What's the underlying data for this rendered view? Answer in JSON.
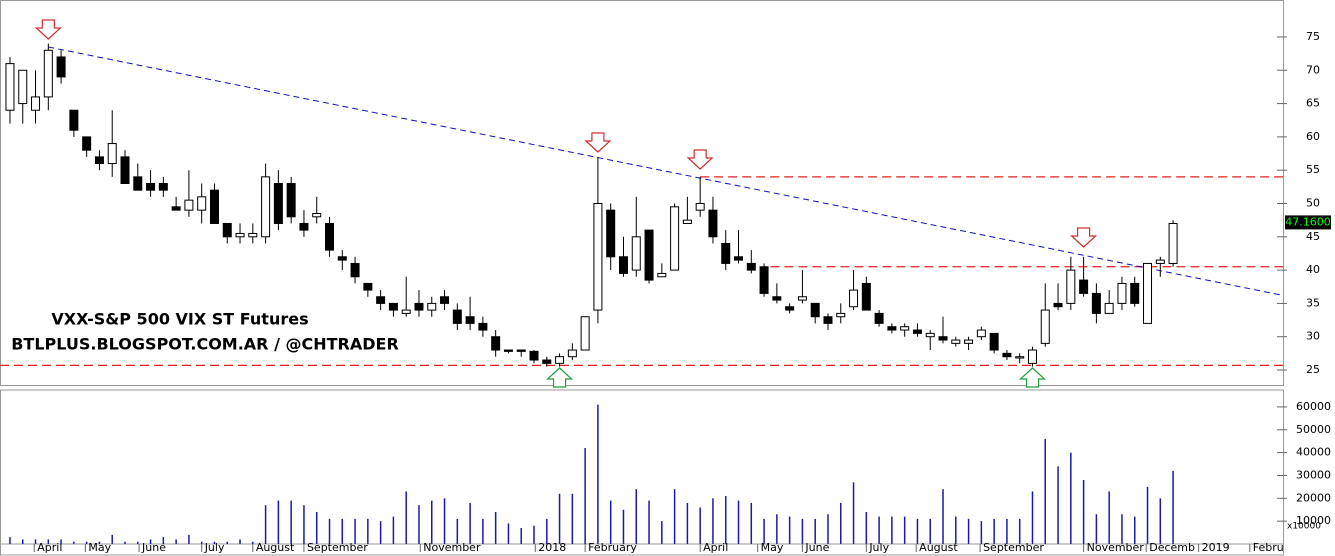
{
  "chart_data": {
    "type": "candlestick",
    "annotations": [
      "VXX-S&P 500 VIX ST Futures",
      "BTLPLUS.BLOGSPOT.COM.AR / @CHTRADER"
    ],
    "open": [
      64,
      65,
      64,
      66,
      72,
      64,
      60,
      57,
      56,
      57,
      54,
      53,
      53,
      49.5,
      49,
      49,
      52,
      47,
      45,
      45,
      45,
      53,
      53,
      47,
      48,
      47,
      42,
      41,
      38,
      36,
      35,
      33.5,
      35,
      34,
      36,
      34,
      33,
      32,
      30,
      28,
      28,
      27.8,
      26.5,
      26,
      27,
      28,
      34,
      49,
      42,
      40,
      46,
      39,
      40,
      47,
      49,
      49,
      44,
      42,
      41,
      40.5,
      36,
      34.5,
      35.5,
      35,
      33,
      33,
      34.5,
      38,
      33.5,
      31.5,
      31,
      31,
      30,
      30,
      29,
      29,
      30,
      30.5,
      27.5,
      26.8,
      26,
      29,
      35,
      35,
      38.5,
      36.5,
      33.5,
      35,
      38,
      32,
      41,
      41
    ],
    "high": [
      72,
      70,
      70,
      74,
      73,
      64,
      60,
      58,
      64,
      58,
      56,
      55,
      54,
      51,
      55,
      53,
      53,
      47,
      47,
      47,
      56,
      55,
      54,
      49,
      51,
      48,
      43,
      42,
      38,
      37,
      35,
      39,
      37,
      36,
      37,
      35,
      36,
      33,
      31,
      28,
      28,
      28,
      27,
      27.5,
      29,
      33,
      57,
      50,
      45,
      51,
      46,
      41,
      50,
      51,
      54,
      51,
      46,
      46,
      43,
      41,
      38,
      35,
      40,
      35,
      33.5,
      35,
      40,
      39,
      34,
      32,
      32,
      32,
      31,
      33,
      30,
      30,
      31.5,
      30.5,
      28,
      27.5,
      28.5,
      38,
      38,
      42,
      42,
      38,
      37,
      39,
      39,
      41,
      42,
      47.5
    ],
    "low": [
      62,
      62,
      62,
      64,
      68,
      60,
      57,
      55,
      54,
      53,
      52,
      51,
      51,
      49,
      48,
      47,
      47,
      44,
      44,
      44,
      44,
      46,
      47,
      45,
      47,
      42,
      40,
      38,
      36,
      34,
      33,
      33,
      33,
      33,
      34,
      31,
      31,
      30,
      27,
      27.5,
      27,
      26,
      25.5,
      25.5,
      26.5,
      28,
      32,
      40,
      39,
      39,
      38,
      39,
      40,
      47,
      48,
      44,
      40,
      41,
      39.5,
      36,
      35,
      33.5,
      35,
      32,
      31,
      32,
      34,
      34,
      31.5,
      30.5,
      30,
      30,
      28,
      29,
      28.5,
      28,
      29.5,
      27.5,
      26.5,
      26,
      25.5,
      28.5,
      34,
      34,
      36,
      32,
      33.5,
      34,
      34.5,
      32,
      39,
      40.5
    ],
    "close": [
      71,
      70,
      66,
      73,
      69,
      61,
      58,
      56,
      59,
      53,
      52,
      52,
      52,
      49,
      50.5,
      51,
      47,
      45,
      45.5,
      45.5,
      54,
      47,
      48,
      46,
      48.5,
      43,
      41.5,
      39,
      37,
      35,
      34,
      34,
      34,
      35,
      35,
      32,
      32,
      31,
      28,
      27.8,
      27.8,
      26.5,
      26,
      27,
      28,
      33,
      50,
      42,
      39.5,
      45,
      38.5,
      39.5,
      49.5,
      47.5,
      50,
      45,
      41,
      41.5,
      40,
      36.5,
      35.5,
      34,
      36,
      33,
      32,
      33.5,
      37,
      34,
      32,
      31,
      31.5,
      30.5,
      30.5,
      29.5,
      29.5,
      29.5,
      31,
      28,
      27,
      27,
      28,
      34,
      34.5,
      40,
      36.5,
      33.5,
      35,
      38,
      35,
      41,
      41.5,
      47
    ],
    "volume": [
      3000,
      2000,
      2000,
      2000,
      2000,
      1000,
      1000,
      1000,
      4000,
      1000,
      1000,
      2000,
      3000,
      2000,
      4000,
      1000,
      1000,
      1000,
      2000,
      1000,
      17000,
      19000,
      19000,
      17000,
      14000,
      11000,
      11000,
      11000,
      11000,
      10000,
      12000,
      23000,
      17000,
      19000,
      20000,
      11000,
      18000,
      11000,
      14000,
      9000,
      7000,
      8000,
      11000,
      22000,
      22000,
      42000,
      61000,
      19000,
      15000,
      24000,
      19000,
      10000,
      24000,
      18000,
      16000,
      20000,
      21000,
      19000,
      18000,
      11000,
      13000,
      12000,
      11000,
      11000,
      13000,
      18000,
      27000,
      14000,
      12000,
      12000,
      12000,
      11000,
      11000,
      24000,
      12000,
      11000,
      10000,
      11000,
      11000,
      11000,
      23000,
      46000,
      34000,
      40000,
      28000,
      13000,
      23000,
      13000,
      12000,
      25000,
      20000,
      32000
    ],
    "up_color": "#ffffff",
    "down_color": "#000000",
    "volume_color": "#1a1aa8",
    "xlim": [
      -0.78,
      99.6
    ],
    "xticks": [
      {
        "value": 1.9,
        "label": "April"
      },
      {
        "value": 5.9,
        "label": "May"
      },
      {
        "value": 10.1,
        "label": "June"
      },
      {
        "value": 15.0,
        "label": "July"
      },
      {
        "value": 19.0,
        "label": "August"
      },
      {
        "value": 23.0,
        "label": "September"
      },
      {
        "value": 32.1,
        "label": "November"
      },
      {
        "value": 41.1,
        "label": "2018"
      },
      {
        "value": 45.0,
        "label": "February"
      },
      {
        "value": 54.0,
        "label": "April"
      },
      {
        "value": 58.5,
        "label": "May"
      },
      {
        "value": 62.0,
        "label": "June"
      },
      {
        "value": 67.0,
        "label": "July"
      },
      {
        "value": 70.9,
        "label": "August"
      },
      {
        "value": 75.9,
        "label": "September"
      },
      {
        "value": 84.0,
        "label": "November"
      },
      {
        "value": 88.9,
        "label": "Decemb"
      },
      {
        "value": 93.0,
        "label": "2019"
      },
      {
        "value": 97.0,
        "label": "Febru"
      }
    ],
    "ylim": [
      22.75,
      80.55
    ],
    "yticks": [
      25,
      30,
      35,
      40,
      45,
      50,
      55,
      60,
      65,
      70,
      75
    ],
    "volume_ylim": [
      0,
      67400
    ],
    "volume_yticks": [
      10000,
      20000,
      30000,
      40000,
      50000,
      60000
    ],
    "volume_unit": "x10000",
    "price_marker": {
      "value": 47.16,
      "label": "47.1600"
    },
    "horizontal_levels": [
      {
        "value": 25.7,
        "from": -0.78
      },
      {
        "value": 54,
        "from": 54
      },
      {
        "value": 40.5,
        "from": 59.5
      }
    ],
    "trendline": {
      "from": [
        3,
        73.5
      ],
      "to": [
        99.6,
        36.2
      ]
    },
    "trend_color": "#1010c0",
    "level_color": "#e02020",
    "grid": true
  }
}
